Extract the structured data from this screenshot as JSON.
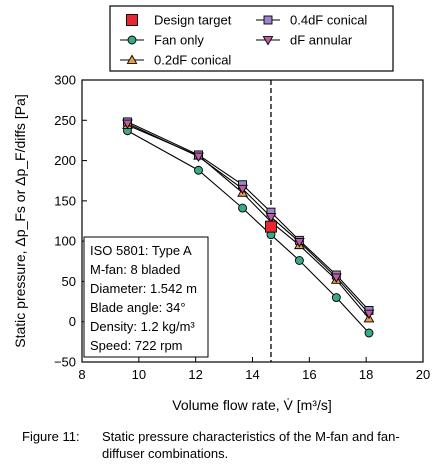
{
  "chart_data": {
    "type": "line",
    "xlabel": "Volume flow rate, V̇ [m³/s]",
    "ylabel": "Static pressure, Δp_Fs or Δp_F/diffs [Pa]",
    "xlim": [
      8,
      20
    ],
    "ylim": [
      -50,
      300
    ],
    "xticks": [
      8,
      10,
      12,
      14,
      16,
      18,
      20
    ],
    "yticks": [
      -50,
      0,
      50,
      100,
      150,
      200,
      250,
      300
    ],
    "grid": false,
    "legend_position": "top",
    "vline": {
      "x": 14.65,
      "style": "dashed"
    },
    "series": [
      {
        "name": "Fan only",
        "marker": "circle",
        "color": "#3aa88a",
        "x": [
          9.6,
          12.1,
          13.65,
          14.65,
          15.65,
          16.95,
          18.1
        ],
        "y": [
          237,
          188,
          141,
          108,
          76,
          30,
          -14
        ]
      },
      {
        "name": "0.2dF conical",
        "marker": "triangle-up",
        "color": "#e8a043",
        "x": [
          9.6,
          12.1,
          13.65,
          14.65,
          15.65,
          16.95,
          18.1
        ],
        "y": [
          244,
          206,
          160,
          124,
          95,
          52,
          4
        ]
      },
      {
        "name": "0.4dF conical",
        "marker": "square",
        "color": "#9b85c9",
        "x": [
          9.6,
          12.1,
          13.65,
          14.65,
          15.65,
          16.95,
          18.1
        ],
        "y": [
          248,
          207,
          170,
          136,
          101,
          58,
          14
        ]
      },
      {
        "name": "dF annular",
        "marker": "triangle-down",
        "color": "#c25aa3",
        "x": [
          9.6,
          12.1,
          13.65,
          14.65,
          15.65,
          16.95,
          18.1
        ],
        "y": [
          246,
          205,
          165,
          130,
          99,
          55,
          10
        ]
      }
    ],
    "design_target": {
      "name": "Design target",
      "marker": "square",
      "color": "#e8282e",
      "x": 14.65,
      "y": 118
    },
    "legend": [
      {
        "label": "Design target",
        "marker": "square",
        "color": "#e8282e",
        "line": false
      },
      {
        "label": "0.4dF conical",
        "marker": "square",
        "color": "#9b85c9",
        "line": true
      },
      {
        "label": "Fan only",
        "marker": "circle",
        "color": "#3aa88a",
        "line": true
      },
      {
        "label": "dF annular",
        "marker": "triangle-down",
        "color": "#c25aa3",
        "line": true
      },
      {
        "label": "0.2dF conical",
        "marker": "triangle-up",
        "color": "#e8a043",
        "line": true
      }
    ],
    "annotation_box": [
      "ISO 5801: Type A",
      "M-fan: 8 bladed",
      "Diameter: 1.542 m",
      "Blade angle: 34°",
      "Density: 1.2 kg/m³",
      "Speed: 722 rpm"
    ]
  },
  "caption": {
    "label": "Figure 11:",
    "text": "Static pressure characteristics of the M-fan and fan-diffuser combinations."
  }
}
